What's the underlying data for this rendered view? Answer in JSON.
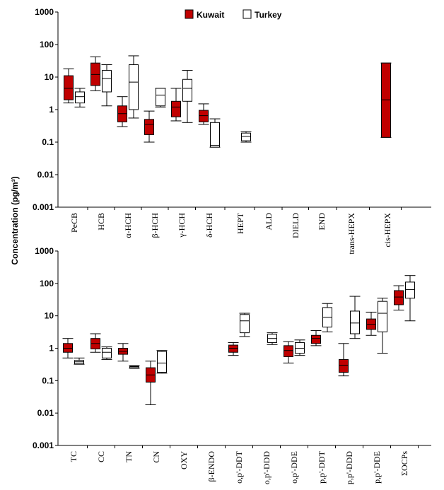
{
  "chart_data": [
    {
      "type": "box",
      "ylabel": "Concentration (pg/m³)",
      "yscale": "log",
      "ylim": [
        0.001,
        1000
      ],
      "yticks": [
        "1000",
        "100",
        "10",
        "1",
        "0.1",
        "0.01",
        "0.001"
      ],
      "legend": {
        "position": "top",
        "entries": [
          "Kuwait",
          "Turkey"
        ]
      },
      "colors": {
        "Kuwait": "#c00000",
        "Turkey": "#ffffff"
      },
      "categories": [
        "PeCB",
        "HCB",
        "α-HCH",
        "β-HCH",
        "γ-HCH",
        "δ-HCH",
        "HEPT",
        "ALD",
        "DIELD",
        "END",
        "trans-HEPX",
        "cis-HEPX"
      ],
      "series": [
        {
          "name": "Kuwait",
          "boxes": [
            {
              "category": "PeCB",
              "min": 1.6,
              "q1": 2.0,
              "median": 4.5,
              "q3": 11,
              "max": 18
            },
            {
              "category": "HCB",
              "min": 3.8,
              "q1": 5.5,
              "median": 12,
              "q3": 27,
              "max": 42
            },
            {
              "category": "α-HCH",
              "min": 0.3,
              "q1": 0.42,
              "median": 0.75,
              "q3": 1.3,
              "max": 2.5
            },
            {
              "category": "β-HCH",
              "min": 0.1,
              "q1": 0.17,
              "median": 0.35,
              "q3": 0.5,
              "max": 0.9
            },
            {
              "category": "γ-HCH",
              "min": 0.45,
              "q1": 0.6,
              "median": 1.2,
              "q3": 1.8,
              "max": 4.5
            },
            {
              "category": "δ-HCH",
              "min": 0.35,
              "q1": 0.42,
              "median": 0.65,
              "q3": 0.95,
              "max": 1.5
            },
            {
              "category": "cis-HEPX",
              "min": 0.14,
              "q1": 0.14,
              "median": 2.0,
              "q3": 27,
              "max": 27
            }
          ]
        },
        {
          "name": "Turkey",
          "boxes": [
            {
              "category": "PeCB",
              "min": 1.2,
              "q1": 1.6,
              "median": 2.5,
              "q3": 3.5,
              "max": 4.5
            },
            {
              "category": "HCB",
              "min": 1.3,
              "q1": 3.5,
              "median": 9,
              "q3": 16,
              "max": 24
            },
            {
              "category": "α-HCH",
              "min": 0.55,
              "q1": 1.0,
              "median": 7,
              "q3": 24,
              "max": 45
            },
            {
              "category": "β-HCH",
              "min": 1.2,
              "q1": 1.3,
              "median": 2.8,
              "q3": 4.5,
              "max": 4.5
            },
            {
              "category": "γ-HCH",
              "min": 0.4,
              "q1": 1.8,
              "median": 4.5,
              "q3": 8.5,
              "max": 16
            },
            {
              "category": "δ-HCH",
              "min": 0.07,
              "q1": 0.07,
              "median": 0.08,
              "q3": 0.4,
              "max": 0.52
            },
            {
              "category": "HEPT",
              "min": 0.1,
              "q1": 0.11,
              "median": 0.15,
              "q3": 0.19,
              "max": 0.21
            }
          ]
        }
      ]
    },
    {
      "type": "box",
      "ylabel": "Concentration (pg/m³)",
      "yscale": "log",
      "ylim": [
        0.001,
        1000
      ],
      "yticks": [
        "1000",
        "100",
        "10",
        "1",
        "0.1",
        "0.01",
        "0.001"
      ],
      "legend": {
        "position": "top",
        "entries": [
          "Kuwait",
          "Turkey"
        ]
      },
      "colors": {
        "Kuwait": "#c00000",
        "Turkey": "#ffffff"
      },
      "categories": [
        "TC",
        "CC",
        "TN",
        "CN",
        "OXY",
        "β-ENDO",
        "o,p'-DDT",
        "o,p'-DDD",
        "o,p'-DDE",
        "p,p'-DDT",
        "p,p'-DDD",
        "p,p'-DDE",
        "ΣOCPs"
      ],
      "series": [
        {
          "name": "Kuwait",
          "boxes": [
            {
              "category": "TC",
              "min": 0.5,
              "q1": 0.75,
              "median": 1.0,
              "q3": 1.4,
              "max": 2.0
            },
            {
              "category": "CC",
              "min": 0.75,
              "q1": 0.95,
              "median": 1.4,
              "q3": 2.0,
              "max": 2.8
            },
            {
              "category": "TN",
              "min": 0.4,
              "q1": 0.65,
              "median": 0.8,
              "q3": 1.0,
              "max": 1.4
            },
            {
              "category": "CN",
              "min": 0.018,
              "q1": 0.09,
              "median": 0.15,
              "q3": 0.25,
              "max": 0.4
            },
            {
              "category": "o,p'-DDT",
              "min": 0.6,
              "q1": 0.75,
              "median": 1.0,
              "q3": 1.25,
              "max": 1.5
            },
            {
              "category": "o,p'-DDE",
              "min": 0.35,
              "q1": 0.55,
              "median": 0.85,
              "q3": 1.2,
              "max": 1.6
            },
            {
              "category": "p,p'-DDT",
              "min": 1.2,
              "q1": 1.4,
              "median": 2.0,
              "q3": 2.5,
              "max": 3.5
            },
            {
              "category": "p,p'-DDD",
              "min": 0.14,
              "q1": 0.18,
              "median": 0.3,
              "q3": 0.45,
              "max": 1.4
            },
            {
              "category": "p,p'-DDE",
              "min": 2.5,
              "q1": 3.8,
              "median": 5.5,
              "q3": 8,
              "max": 13
            },
            {
              "category": "ΣOCPs",
              "min": 15,
              "q1": 22,
              "median": 38,
              "q3": 60,
              "max": 85
            }
          ]
        },
        {
          "name": "Turkey",
          "boxes": [
            {
              "category": "TC",
              "min": 0.32,
              "q1": 0.33,
              "median": 0.38,
              "q3": 0.42,
              "max": 0.5
            },
            {
              "category": "CC",
              "min": 0.45,
              "q1": 0.5,
              "median": 0.75,
              "q3": 1.0,
              "max": 1.1
            },
            {
              "category": "TN",
              "min": 0.24,
              "q1": 0.25,
              "median": 0.27,
              "q3": 0.28,
              "max": 0.29
            },
            {
              "category": "CN",
              "min": 0.17,
              "q1": 0.18,
              "median": 0.35,
              "q3": 0.8,
              "max": 0.85
            },
            {
              "category": "o,p'-DDT",
              "min": 2.3,
              "q1": 3.0,
              "median": 7,
              "q3": 11,
              "max": 12
            },
            {
              "category": "o,p'-DDD",
              "min": 1.3,
              "q1": 1.5,
              "median": 2.0,
              "q3": 2.7,
              "max": 3.0
            },
            {
              "category": "o,p'-DDE",
              "min": 0.6,
              "q1": 0.7,
              "median": 1.0,
              "q3": 1.5,
              "max": 1.8
            },
            {
              "category": "p,p'-DDT",
              "min": 3.2,
              "q1": 4.5,
              "median": 9,
              "q3": 18,
              "max": 24
            },
            {
              "category": "p,p'-DDD",
              "min": 2.0,
              "q1": 2.8,
              "median": 6,
              "q3": 14,
              "max": 40
            },
            {
              "category": "p,p'-DDE",
              "min": 0.7,
              "q1": 3.2,
              "median": 12,
              "q3": 28,
              "max": 35
            },
            {
              "category": "ΣOCPs",
              "min": 7,
              "q1": 35,
              "median": 65,
              "q3": 110,
              "max": 175
            }
          ]
        }
      ]
    }
  ]
}
